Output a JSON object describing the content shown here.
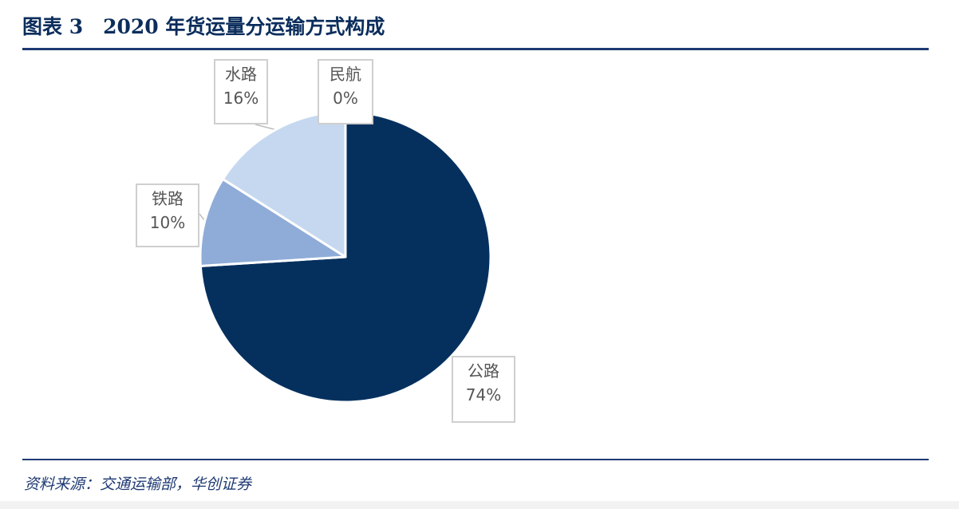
{
  "header": {
    "title": "图表 3　2020 年货运量分运输方式构成"
  },
  "footer": {
    "source": "资料来源：交通运输部，华创证券"
  },
  "colors": {
    "title": "#0b2d5c",
    "rule": "#1f3a73",
    "label_border": "#cfcfcf",
    "label_text": "#555555"
  },
  "chart_data": {
    "type": "pie",
    "title": "2020 年货运量分运输方式构成",
    "slices": [
      {
        "label": "公路",
        "value": 74,
        "value_label": "74%",
        "color": "#05305e"
      },
      {
        "label": "铁路",
        "value": 10,
        "value_label": "10%",
        "color": "#8facd8"
      },
      {
        "label": "水路",
        "value": 16,
        "value_label": "16%",
        "color": "#c6d8ef"
      },
      {
        "label": "民航",
        "value": 0,
        "value_label": "0%",
        "color": "#dbe6f5"
      }
    ],
    "start_angle": "12 o'clock",
    "direction": "clockwise",
    "legend": "none (callout labels)"
  }
}
